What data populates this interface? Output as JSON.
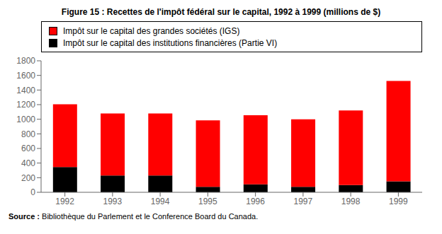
{
  "chart_data": {
    "type": "bar",
    "title": "Figure 15 : Recettes de l'impôt fédéral sur le capital, 1992 à 1999 (millions de $)",
    "categories": [
      "1992",
      "1993",
      "1994",
      "1995",
      "1996",
      "1997",
      "1998",
      "1999"
    ],
    "series": [
      {
        "name": "Impôt sur le capital des institutions financières (Partie VI)",
        "color": "#000000",
        "values": [
          345,
          230,
          230,
          75,
          110,
          75,
          100,
          150
        ]
      },
      {
        "name": "Impôt sur le capital des grandes sociétés (IGS)",
        "color": "#ff0000",
        "values": [
          860,
          850,
          850,
          910,
          945,
          925,
          1020,
          1375
        ]
      }
    ],
    "stacked": true,
    "ylim": [
      0,
      1800
    ],
    "yticks": [
      0,
      200,
      400,
      600,
      800,
      1000,
      1200,
      1400,
      1600,
      1800
    ],
    "grid": false,
    "legend": "top",
    "annotations": [
      "Source :",
      "Bibliothèque du Parlement et le Conference Board du Canada."
    ]
  }
}
